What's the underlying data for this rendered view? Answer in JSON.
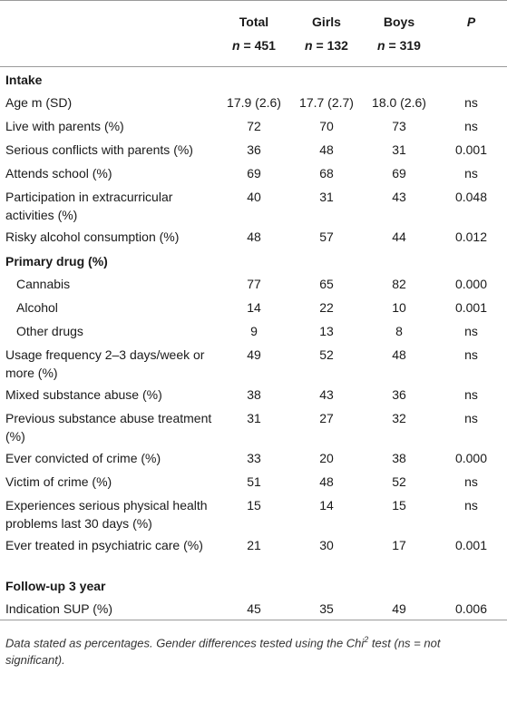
{
  "header": {
    "cols": [
      {
        "title": "",
        "n_prefix": "",
        "n_value": ""
      },
      {
        "title": "Total",
        "n_prefix": "n",
        "n_value": " = 451"
      },
      {
        "title": "Girls",
        "n_prefix": "n",
        "n_value": " = 132"
      },
      {
        "title": "Boys",
        "n_prefix": "n",
        "n_value": " = 319"
      },
      {
        "title": "P",
        "n_prefix": "",
        "n_value": ""
      }
    ]
  },
  "sections": {
    "intake": "Intake",
    "primary_drug": "Primary drug (%)",
    "followup": "Follow-up 3 year"
  },
  "rows": {
    "age": [
      "Age m (SD)",
      "17.9 (2.6)",
      "17.7 (2.7)",
      "18.0 (2.6)",
      "ns"
    ],
    "parents": [
      "Live with parents (%)",
      "72",
      "70",
      "73",
      "ns"
    ],
    "conflicts": [
      "Serious conflicts with parents (%)",
      "36",
      "48",
      "31",
      "0.001"
    ],
    "school": [
      "Attends school (%)",
      "69",
      "68",
      "69",
      "ns"
    ],
    "extracurricular": [
      "Participation in extracurricular activities (%)",
      "40",
      "31",
      "43",
      "0.048"
    ],
    "alcohol_risk": [
      "Risky alcohol consumption (%)",
      "48",
      "57",
      "44",
      "0.012"
    ],
    "cannabis": [
      "Cannabis",
      "77",
      "65",
      "82",
      "0.000"
    ],
    "alcohol": [
      "Alcohol",
      "14",
      "22",
      "10",
      "0.001"
    ],
    "other": [
      "Other drugs",
      "9",
      "13",
      "8",
      "ns"
    ],
    "frequency": [
      "Usage frequency 2–3 days/week or more (%)",
      "49",
      "52",
      "48",
      "ns"
    ],
    "mixed": [
      "Mixed substance abuse (%)",
      "38",
      "43",
      "36",
      "ns"
    ],
    "previous": [
      "Previous substance abuse treatment (%)",
      "31",
      "27",
      "32",
      "ns"
    ],
    "convicted": [
      "Ever convicted of crime (%)",
      "33",
      "20",
      "38",
      "0.000"
    ],
    "victim": [
      "Victim of crime (%)",
      "51",
      "48",
      "52",
      "ns"
    ],
    "physical": [
      "Experiences serious physical health problems last 30 days (%)",
      "15",
      "14",
      "15",
      "ns"
    ],
    "psychiatric": [
      "Ever treated in psychiatric care (%)",
      "21",
      "30",
      "17",
      "0.001"
    ],
    "sup": [
      "Indication SUP (%)",
      "45",
      "35",
      "49",
      "0.006"
    ]
  },
  "note": {
    "part1": "Data stated as percentages. Gender differences tested using the Chi",
    "sup": "2",
    "part2": " test (ns = not significant)."
  }
}
